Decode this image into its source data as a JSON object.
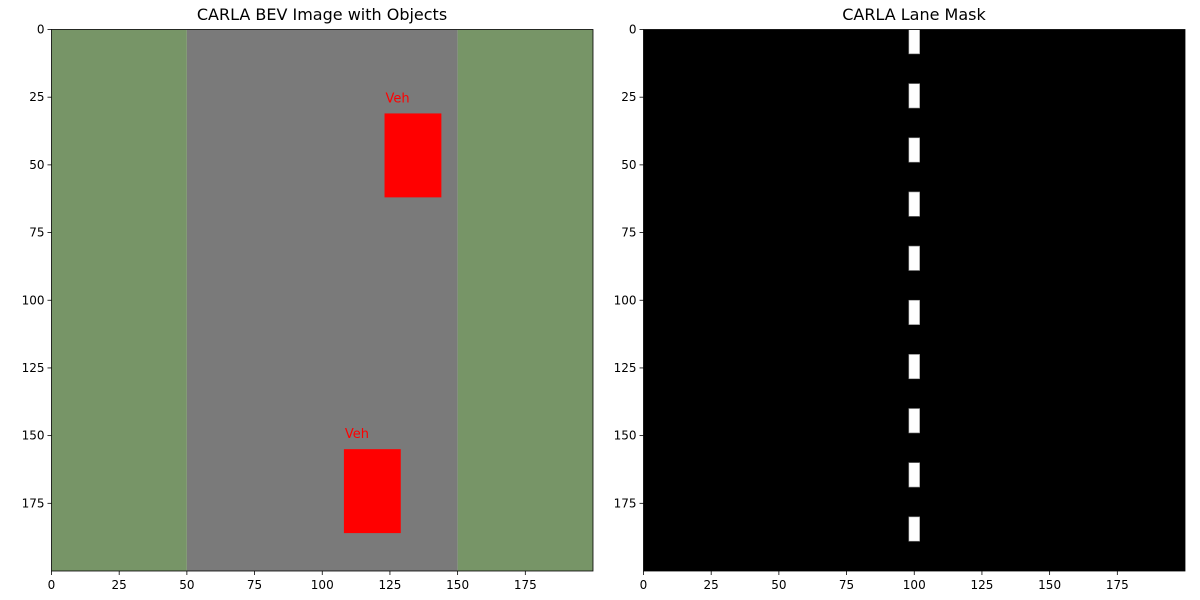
{
  "chart_data": [
    {
      "type": "image",
      "title": "CARLA BEV Image with Objects",
      "xlim": [
        0,
        200
      ],
      "ylim": [
        200,
        0
      ],
      "xticks": [
        0,
        25,
        50,
        75,
        100,
        125,
        150,
        175
      ],
      "yticks": [
        0,
        25,
        50,
        75,
        100,
        125,
        150,
        175
      ],
      "regions": [
        {
          "name": "left-grass",
          "x": [
            0,
            50
          ],
          "color": "#779567"
        },
        {
          "name": "road",
          "x": [
            50,
            150
          ],
          "color": "#7a7a7a"
        },
        {
          "name": "right-grass",
          "x": [
            150,
            200
          ],
          "color": "#779567"
        }
      ],
      "objects": [
        {
          "label": "Veh",
          "x": [
            123,
            144
          ],
          "y": [
            31,
            62
          ],
          "color": "#ff0000"
        },
        {
          "label": "Veh",
          "x": [
            108,
            129
          ],
          "y": [
            155,
            186
          ],
          "color": "#ff0000"
        }
      ]
    },
    {
      "type": "image",
      "title": "CARLA Lane Mask",
      "xlim": [
        0,
        200
      ],
      "ylim": [
        200,
        0
      ],
      "xticks": [
        0,
        25,
        50,
        75,
        100,
        125,
        150,
        175
      ],
      "yticks": [
        0,
        25,
        50,
        75,
        100,
        125,
        150,
        175
      ],
      "background": "#000000",
      "lane_color": "#ffffff",
      "lane_dashes": [
        {
          "x": [
            98,
            102
          ],
          "y": [
            0,
            9
          ]
        },
        {
          "x": [
            98,
            102
          ],
          "y": [
            20,
            29
          ]
        },
        {
          "x": [
            98,
            102
          ],
          "y": [
            40,
            49
          ]
        },
        {
          "x": [
            98,
            102
          ],
          "y": [
            60,
            69
          ]
        },
        {
          "x": [
            98,
            102
          ],
          "y": [
            80,
            89
          ]
        },
        {
          "x": [
            98,
            102
          ],
          "y": [
            100,
            109
          ]
        },
        {
          "x": [
            98,
            102
          ],
          "y": [
            120,
            129
          ]
        },
        {
          "x": [
            98,
            102
          ],
          "y": [
            140,
            149
          ]
        },
        {
          "x": [
            98,
            102
          ],
          "y": [
            160,
            169
          ]
        },
        {
          "x": [
            98,
            102
          ],
          "y": [
            180,
            189
          ]
        }
      ]
    }
  ]
}
